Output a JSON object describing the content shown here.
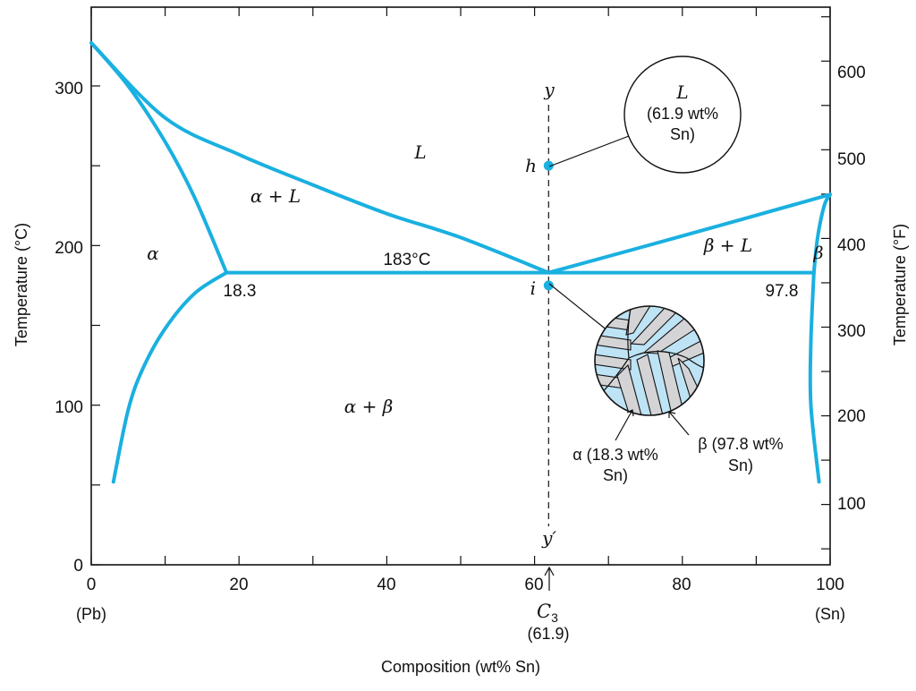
{
  "chart_data": {
    "type": "line",
    "xlabel": "Composition (wt% Sn)",
    "ylabel_left": "Temperature (°C)",
    "ylabel_right": "Temperature (°F)",
    "xlim": [
      0,
      100
    ],
    "ylim": [
      0,
      350
    ],
    "x_ticks": [
      "0",
      "20",
      "40",
      "60",
      "80",
      "100"
    ],
    "y_ticks_left": [
      "0",
      "100",
      "200",
      "300"
    ],
    "y_ticks_right": [
      "100",
      "200",
      "300",
      "400",
      "500",
      "600"
    ],
    "x_end_labels": {
      "left": "(Pb)",
      "right": "(Sn)"
    },
    "phase_boundaries": [
      {
        "name": "liquidus-left",
        "points": [
          [
            0,
            327
          ],
          [
            10,
            280
          ],
          [
            20,
            257
          ],
          [
            30,
            238
          ],
          [
            40,
            220
          ],
          [
            50,
            205
          ],
          [
            61.9,
            183
          ]
        ]
      },
      {
        "name": "liquidus-right",
        "points": [
          [
            61.9,
            183
          ],
          [
            80,
            206
          ],
          [
            100,
            232
          ]
        ]
      },
      {
        "name": "solidus-alpha",
        "points": [
          [
            0,
            327
          ],
          [
            5,
            300
          ],
          [
            10,
            265
          ],
          [
            14,
            230
          ],
          [
            18.3,
            183
          ]
        ]
      },
      {
        "name": "solvus-alpha",
        "points": [
          [
            18.3,
            183
          ],
          [
            14,
            170
          ],
          [
            10,
            148
          ],
          [
            7,
            123
          ],
          [
            5,
            97
          ],
          [
            3,
            52
          ]
        ]
      },
      {
        "name": "eutectic-isotherm",
        "points": [
          [
            18.3,
            183
          ],
          [
            97.8,
            183
          ]
        ]
      },
      {
        "name": "solidus-beta",
        "points": [
          [
            97.8,
            183
          ],
          [
            98.3,
            205
          ],
          [
            99.2,
            225
          ],
          [
            100,
            232
          ]
        ]
      },
      {
        "name": "solvus-beta",
        "points": [
          [
            97.8,
            183
          ],
          [
            97.4,
            140
          ],
          [
            97.4,
            100
          ],
          [
            98.5,
            52
          ]
        ]
      }
    ],
    "composition_line": {
      "x": 61.9,
      "top_label": "y",
      "bottom_label": "y′"
    },
    "points": [
      {
        "label": "h",
        "x": 61.9,
        "y": 250
      },
      {
        "label": "i",
        "x": 61.9,
        "y": 175
      }
    ],
    "region_labels": [
      "L",
      "α + L",
      "α",
      "β + L",
      "β",
      "α + β"
    ],
    "annotations": {
      "eutectic_temp": "183°C",
      "alpha_limit": "18.3",
      "beta_limit": "97.8",
      "c3_symbol": "C",
      "c3_sub": "3",
      "c3_value": "(61.9)"
    },
    "callouts": {
      "liquid_l": "L",
      "liquid_l1": "(61.9 wt%",
      "liquid_l2": "Sn)",
      "alpha_l1": "α (18.3 wt%",
      "alpha_l2": "Sn)",
      "beta_l1": "β (97.8 wt%",
      "beta_l2": "Sn)"
    },
    "colors": {
      "curve": "#1ab0e0",
      "beta_lamella": "#bde3f5",
      "alpha_lamella": "#d4d4d6"
    }
  }
}
